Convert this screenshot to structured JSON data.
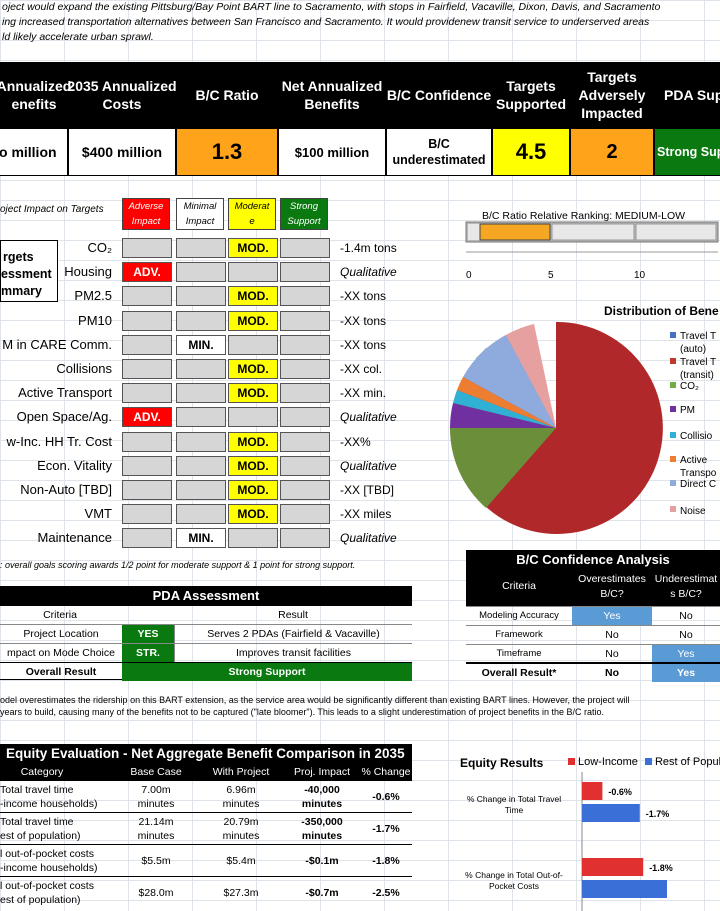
{
  "intro": {
    "line1": "oject would expand the existing Pittsburg/Bay Point BART line to Sacramento, with stops in Fairfield, Vacaville, Dixon, Davis, and Sacramento",
    "line2": "ing increased transportation alternatives between San Francisco and Sacramento. It would providenew transit service to underserved areas",
    "line3": "ld likely accelerate urban sprawl."
  },
  "summary": {
    "headers": [
      "Annualized",
      "enefits",
      "2035 Annualized",
      "Costs",
      "B/C Ratio",
      "Net Annualized",
      "Benefits",
      "B/C Confidence",
      "Targets",
      "Supported",
      "Targets",
      "Adversely",
      "Impacted",
      "PDA Sup"
    ],
    "benefits": "o million",
    "costs": "$400 million",
    "bc_ratio": "1.3",
    "net_benefits": "$100 million",
    "bc_conf_l1": "B/C",
    "bc_conf_l2": "underestimated",
    "targets_supported": "4.5",
    "targets_adverse": "2",
    "pda_support": "Strong Sup"
  },
  "impact": {
    "title": "oject Impact on Targets",
    "legend": {
      "adverse": [
        "Adverse",
        "Impact"
      ],
      "minimal": [
        "Minimal",
        "Impact"
      ],
      "moderate": [
        "Moderat",
        "e"
      ],
      "strong": [
        "Strong",
        "Support"
      ]
    },
    "tas": [
      "rgets",
      "essment",
      "mmary"
    ],
    "rows": [
      {
        "label": "CO₂",
        "score": "MOD.",
        "result": "-1.4m tons"
      },
      {
        "label": "Housing",
        "score": "ADV.",
        "result": "Qualitative"
      },
      {
        "label": "PM2.5",
        "score": "MOD.",
        "result": "-XX tons"
      },
      {
        "label": "PM10",
        "score": "MOD.",
        "result": "-XX tons"
      },
      {
        "label": "M in CARE Comm.",
        "score": "MIN.",
        "result": "-XX tons"
      },
      {
        "label": "Collisions",
        "score": "MOD.",
        "result": "-XX col."
      },
      {
        "label": "Active Transport",
        "score": "MOD.",
        "result": "-XX min."
      },
      {
        "label": "Open Space/Ag.",
        "score": "ADV.",
        "result": "Qualitative"
      },
      {
        "label": "w-Inc. HH Tr. Cost",
        "score": "MOD.",
        "result": "-XX%"
      },
      {
        "label": "Econ. Vitality",
        "score": "MOD.",
        "result": "Qualitative"
      },
      {
        "label": "Non-Auto [TBD]",
        "score": "MOD.",
        "result": "-XX [TBD]"
      },
      {
        "label": "VMT",
        "score": "MOD.",
        "result": "-XX miles"
      },
      {
        "label": "Maintenance",
        "score": "MIN.",
        "result": "Qualitative"
      }
    ],
    "footnote": ": overall goals scoring awards 1/2 point for moderate support & 1 point for strong support."
  },
  "ranking": {
    "title": "B/C Ratio Relative Ranking: MEDIUM-LOW",
    "ticks": [
      "0",
      "5",
      "10"
    ]
  },
  "pie": {
    "title": "Distribution of Bene",
    "legend": [
      "Travel T",
      "(auto)",
      "Travel T",
      "(transit)",
      "CO₂",
      "PM",
      "Collisio",
      "Active",
      "Transpo",
      "Direct C",
      "Noise"
    ],
    "colors": {
      "auto": "#4472c4",
      "transit": "#c0392b",
      "co2": "#70ad47",
      "pm": "#7030a0",
      "collision": "#31b0d5",
      "active": "#ed7d31",
      "direct": "#8faadc",
      "noise": "#e6a0a0"
    }
  },
  "pda": {
    "title": "PDA Assessment",
    "col_criteria": "Criteria",
    "col_result": "Result",
    "rows": [
      {
        "criteria": "Project Location",
        "score": "YES",
        "result": "Serves 2 PDAs (Fairfield & Vacaville)"
      },
      {
        "criteria": "mpact on Mode Choice",
        "score": "STR.",
        "result": "Improves transit facilities"
      }
    ],
    "overall_label": "Overall Result",
    "overall_value": "Strong Support"
  },
  "bc_conf": {
    "title": "B/C Confidence Analysis",
    "col_criteria": "Criteria",
    "col_over": [
      "Overestimates",
      "B/C?"
    ],
    "col_under": [
      "Underestimat",
      "s B/C?"
    ],
    "rows": [
      {
        "criteria": "Modeling Accuracy",
        "over": "Yes",
        "under": "No"
      },
      {
        "criteria": "Framework",
        "over": "No",
        "under": "No"
      },
      {
        "criteria": "Timeframe",
        "over": "No",
        "under": "Yes"
      }
    ],
    "overall_label": "Overall Result*",
    "overall_over": "No",
    "overall_under": "Yes"
  },
  "note": {
    "line1": "odel overestimates the ridership on this BART extension, as the service area would be significantly different than existing BART lines. However, the project will",
    "line2": "years to build, causing many of the benefits not to be captured (\"late bloomer\"). This leads to a slight underestimation of project benefits in the B/C ratio."
  },
  "equity": {
    "title": "Equity Evaluation - Net Aggregate Benefit Comparison in 2035",
    "headers": [
      "Category",
      "Base Case",
      "With Project",
      "Proj. Impact",
      "% Change"
    ],
    "rows": [
      {
        "cat1": "Total travel time",
        "cat2": "-income households)",
        "base": "7.00m",
        "base2": "minutes",
        "with": "6.96m",
        "with2": "minutes",
        "impact": "-40,000",
        "impact2": "minutes",
        "pct": "-0.6%"
      },
      {
        "cat1": "Total travel time",
        "cat2": "est of population)",
        "base": "21.14m",
        "base2": "minutes",
        "with": "20.79m",
        "with2": "minutes",
        "impact": "-350,000",
        "impact2": "minutes",
        "pct": "-1.7%"
      },
      {
        "cat1": "l out-of-pocket costs",
        "cat2": "-income households)",
        "base": "$5.5m",
        "base2": "",
        "with": "$5.4m",
        "with2": "",
        "impact": "-$0.1m",
        "impact2": "",
        "pct": "-1.8%"
      },
      {
        "cat1": "l out-of-pocket costs",
        "cat2": "est of population)",
        "base": "$28.0m",
        "base2": "",
        "with": "$27.3m",
        "with2": "",
        "impact": "-$0.7m",
        "impact2": "",
        "pct": "-2.5%"
      }
    ]
  },
  "chart_data": {
    "type": "bar",
    "title": "Equity Results",
    "categories": [
      "% Change in Total Travel Time",
      "% Change in Total Out-of-Pocket Costs"
    ],
    "series": [
      {
        "name": "Low-Income",
        "values": [
          -0.6,
          -1.8
        ],
        "labels": [
          "-0.6%",
          "-1.8%"
        ],
        "color": "#e03030"
      },
      {
        "name": "Rest of Popul",
        "values": [
          -1.7,
          -2.5
        ],
        "labels": [
          "-1.7%",
          ""
        ],
        "color": "#3a6fd8"
      }
    ]
  }
}
